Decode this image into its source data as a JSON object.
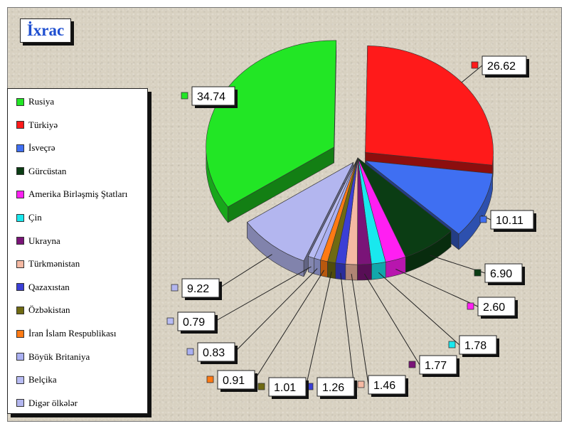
{
  "title": "İxrac",
  "chart_data": {
    "type": "pie",
    "title": "İxrac",
    "legend_position": "left",
    "categories": [
      "Rusiya",
      "Türkiyə",
      "İsveçrə",
      "Gürcüstan",
      "Amerika Birləşmiş Ştatları",
      "Çin",
      "Ukrayna",
      "Türkmənistan",
      "Qazaxıstan",
      "Özbəkistan",
      "İran İslam Respublikası",
      "Böyük Britaniya",
      "Belçika",
      "Digər ölkələr"
    ],
    "slices": [
      {
        "name": "Türkiyə",
        "value": 26.62,
        "label": "26.62",
        "color": "#ff1a1a"
      },
      {
        "name": "İsveçrə",
        "value": 10.11,
        "label": "10.11",
        "color": "#3f6ff2"
      },
      {
        "name": "Gürcüstan",
        "value": 6.9,
        "label": "6.90",
        "color": "#0b3d14"
      },
      {
        "name": "Amerika Birləşmiş Ştatları",
        "value": 2.6,
        "label": "2.60",
        "color": "#ff1ff2"
      },
      {
        "name": "Çin",
        "value": 1.78,
        "label": "1.78",
        "color": "#19e8ee"
      },
      {
        "name": "Ukrayna",
        "value": 1.77,
        "label": "1.77",
        "color": "#7a1478"
      },
      {
        "name": "Türkmənistan",
        "value": 1.46,
        "label": "1.46",
        "color": "#f5b9a3"
      },
      {
        "name": "Qazaxıstan",
        "value": 1.26,
        "label": "1.26",
        "color": "#3b3fd6"
      },
      {
        "name": "Özbəkistan",
        "value": 1.01,
        "label": "1.01",
        "color": "#6f6a12"
      },
      {
        "name": "İran İslam Respublikası",
        "value": 0.91,
        "label": "0.91",
        "color": "#ff7a14"
      },
      {
        "name": "Böyük Britaniya",
        "value": 0.83,
        "label": "0.83",
        "color": "#aab0f2"
      },
      {
        "name": "Belçika",
        "value": 0.79,
        "label": "0.79",
        "color": "#b8bcf4"
      },
      {
        "name": "Digər ölkələr",
        "value": 9.22,
        "label": "9.22",
        "color": "#b3b6ef"
      },
      {
        "name": "Rusiya",
        "value": 34.74,
        "label": "34.74",
        "color": "#22e625"
      }
    ],
    "legend_colors": {
      "Rusiya": "#22e625",
      "Türkiyə": "#ff1a1a",
      "İsveçrə": "#3f6ff2",
      "Gürcüstan": "#0b3d14",
      "Amerika Birləşmiş Ştatları": "#ff1ff2",
      "Çin": "#19e8ee",
      "Ukrayna": "#7a1478",
      "Türkmənistan": "#f5b9a3",
      "Qazaxıstan": "#3b3fd6",
      "Özbəkistan": "#6f6a12",
      "İran İslam Respublikası": "#ff7a14",
      "Böyük Britaniya": "#aab0f2",
      "Belçika": "#b8bcf4",
      "Digər ölkələr": "#b3b6ef"
    }
  }
}
